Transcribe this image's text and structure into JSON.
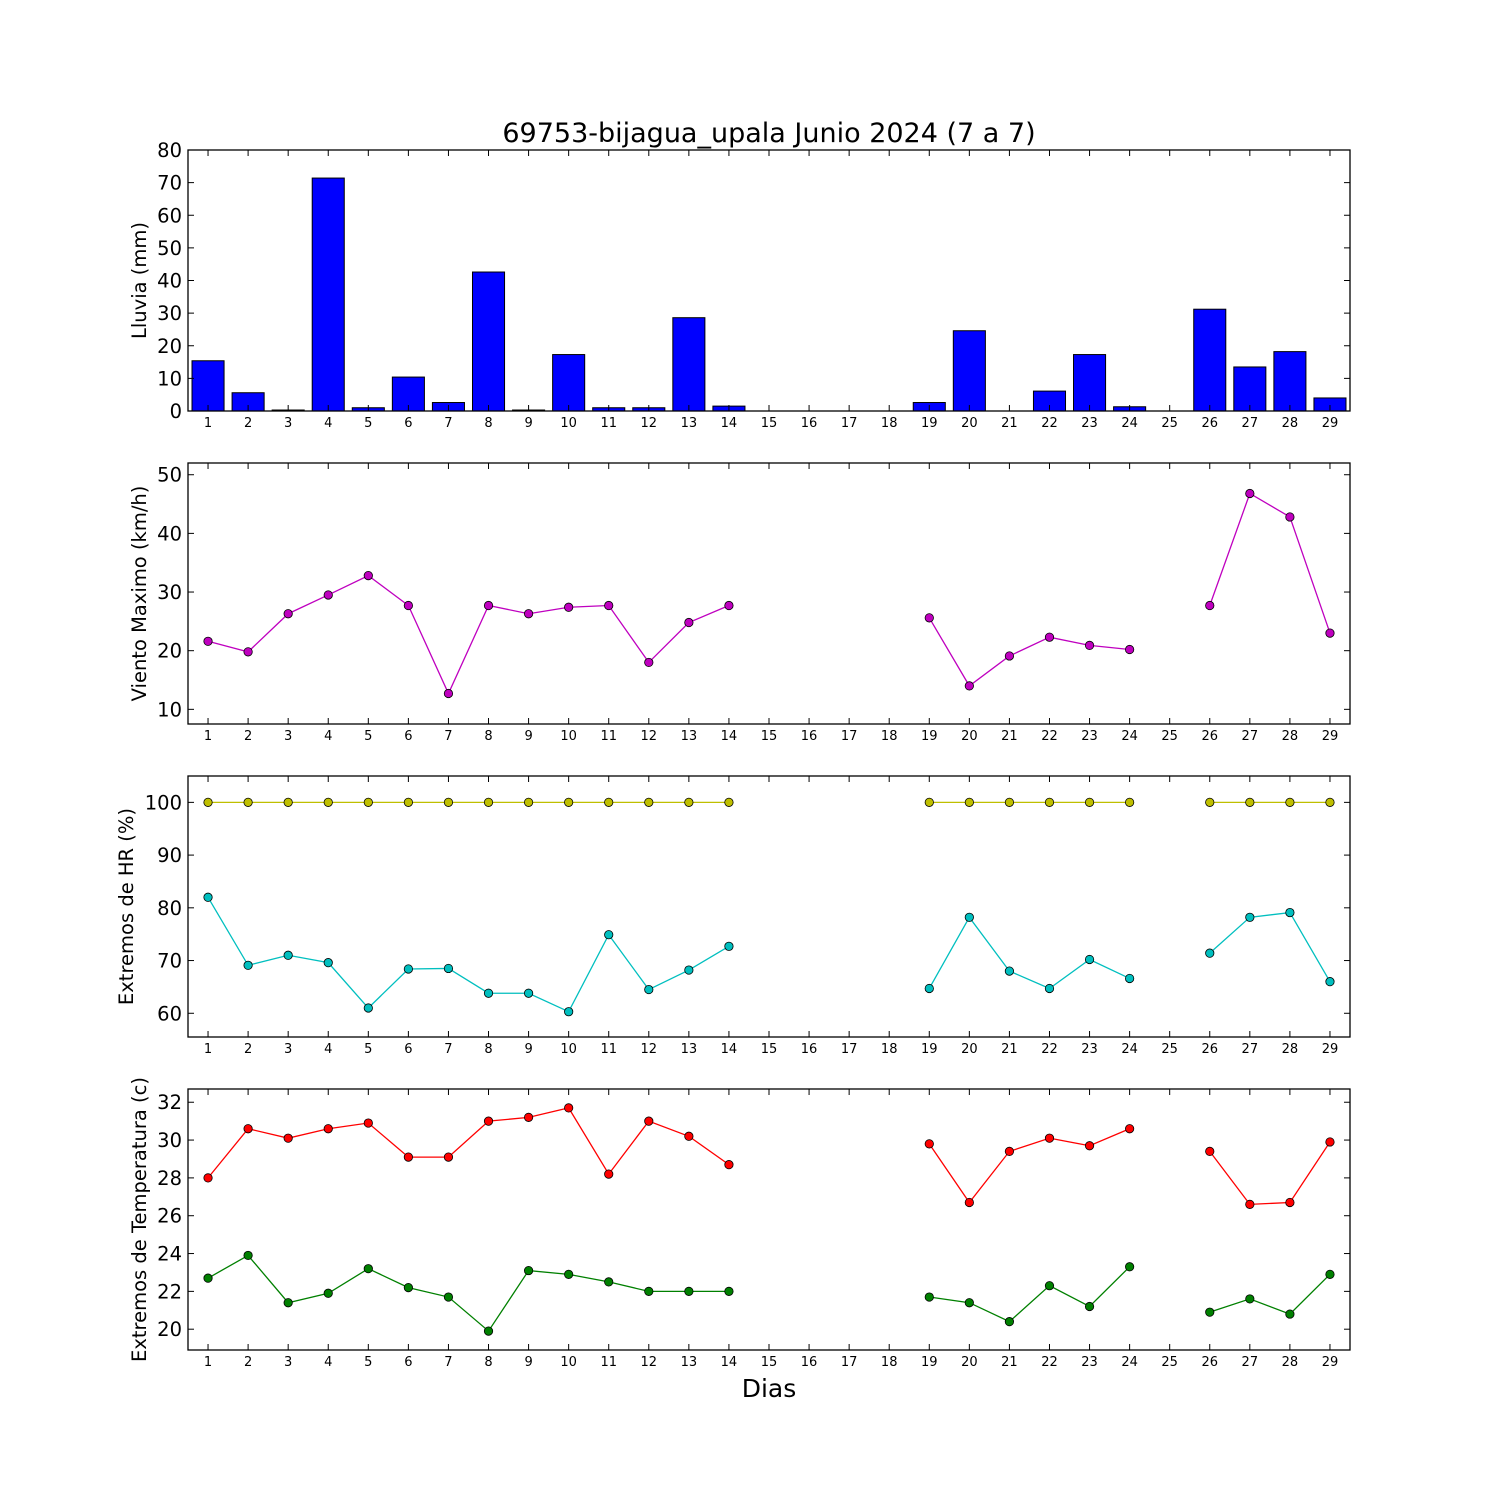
{
  "chart_data": [
    {
      "type": "bar",
      "title": "69753-bijagua_upala Junio 2024  (7 a 7)",
      "ylabel": "Lluvia (mm)",
      "ylim": [
        0,
        80
      ],
      "yticks": [
        "0",
        "10",
        "20",
        "30",
        "40",
        "50",
        "60",
        "70",
        "80"
      ],
      "x": [
        "1",
        "2",
        "3",
        "4",
        "5",
        "6",
        "7",
        "8",
        "9",
        "10",
        "11",
        "12",
        "13",
        "14",
        "15",
        "16",
        "17",
        "18",
        "19",
        "20",
        "21",
        "22",
        "23",
        "24",
        "25",
        "26",
        "27",
        "28",
        "29"
      ],
      "values": [
        15.4,
        5.6,
        0.3,
        71.4,
        1.0,
        10.4,
        2.6,
        42.6,
        0.3,
        17.3,
        1.0,
        1.0,
        28.6,
        1.5,
        null,
        null,
        null,
        null,
        2.6,
        24.6,
        null,
        6.1,
        17.3,
        1.3,
        null,
        31.2,
        13.5,
        18.2,
        4.0
      ],
      "color": "#0000ff"
    },
    {
      "type": "line",
      "ylabel": "Viento Maximo (km/h)",
      "ylim": [
        7.5,
        52
      ],
      "yticks": [
        "10",
        "20",
        "30",
        "40",
        "50"
      ],
      "x": [
        "1",
        "2",
        "3",
        "4",
        "5",
        "6",
        "7",
        "8",
        "9",
        "10",
        "11",
        "12",
        "13",
        "14",
        "15",
        "16",
        "17",
        "18",
        "19",
        "20",
        "21",
        "22",
        "23",
        "24",
        "25",
        "26",
        "27",
        "28",
        "29"
      ],
      "series": [
        {
          "color": "#bf00bf",
          "values": [
            21.6,
            19.8,
            26.3,
            29.5,
            32.8,
            27.7,
            12.7,
            27.7,
            26.3,
            27.4,
            27.7,
            18.0,
            24.8,
            27.7,
            null,
            null,
            null,
            null,
            25.6,
            14.0,
            19.1,
            22.3,
            20.9,
            20.2,
            null,
            27.7,
            46.8,
            42.8,
            23.0
          ]
        }
      ]
    },
    {
      "type": "line",
      "ylabel": "Extremos de HR (%)",
      "ylim": [
        55.5,
        105
      ],
      "yticks": [
        "60",
        "70",
        "80",
        "90",
        "100"
      ],
      "x": [
        "1",
        "2",
        "3",
        "4",
        "5",
        "6",
        "7",
        "8",
        "9",
        "10",
        "11",
        "12",
        "13",
        "14",
        "15",
        "16",
        "17",
        "18",
        "19",
        "20",
        "21",
        "22",
        "23",
        "24",
        "25",
        "26",
        "27",
        "28",
        "29"
      ],
      "series": [
        {
          "color": "#bfbf00",
          "values": [
            100,
            100,
            100,
            100,
            100,
            100,
            100,
            100,
            100,
            100,
            100,
            100,
            100,
            100,
            null,
            null,
            null,
            null,
            100,
            100,
            100,
            100,
            100,
            100,
            null,
            100,
            100,
            100,
            100
          ]
        },
        {
          "color": "#00bfbf",
          "values": [
            82.0,
            69.1,
            71.0,
            69.6,
            61.0,
            68.4,
            68.5,
            63.8,
            63.8,
            60.3,
            74.9,
            64.5,
            68.2,
            72.7,
            null,
            null,
            null,
            null,
            64.7,
            78.2,
            68.0,
            64.7,
            70.2,
            66.6,
            null,
            71.4,
            78.2,
            79.1,
            66.0
          ]
        }
      ]
    },
    {
      "type": "line",
      "ylabel": "Extremos de Temperatura (c)",
      "xlabel": "Dias",
      "ylim": [
        18.9,
        32.7
      ],
      "yticks": [
        "20",
        "22",
        "24",
        "26",
        "28",
        "30",
        "32"
      ],
      "x": [
        "1",
        "2",
        "3",
        "4",
        "5",
        "6",
        "7",
        "8",
        "9",
        "10",
        "11",
        "12",
        "13",
        "14",
        "15",
        "16",
        "17",
        "18",
        "19",
        "20",
        "21",
        "22",
        "23",
        "24",
        "25",
        "26",
        "27",
        "28",
        "29"
      ],
      "series": [
        {
          "color": "#ff0000",
          "values": [
            28.0,
            30.6,
            30.1,
            30.6,
            30.9,
            29.1,
            29.1,
            31.0,
            31.2,
            31.7,
            28.2,
            31.0,
            30.2,
            28.7,
            null,
            null,
            null,
            null,
            29.8,
            26.7,
            29.4,
            30.1,
            29.7,
            30.6,
            null,
            29.4,
            26.6,
            26.7,
            29.9
          ]
        },
        {
          "color": "#008000",
          "values": [
            22.7,
            23.9,
            21.4,
            21.9,
            23.2,
            22.2,
            21.7,
            19.9,
            23.1,
            22.9,
            22.5,
            22.0,
            22.0,
            22.0,
            null,
            null,
            null,
            null,
            21.7,
            21.4,
            20.4,
            22.3,
            21.2,
            23.3,
            null,
            20.9,
            21.6,
            20.8,
            22.9
          ]
        }
      ]
    }
  ]
}
